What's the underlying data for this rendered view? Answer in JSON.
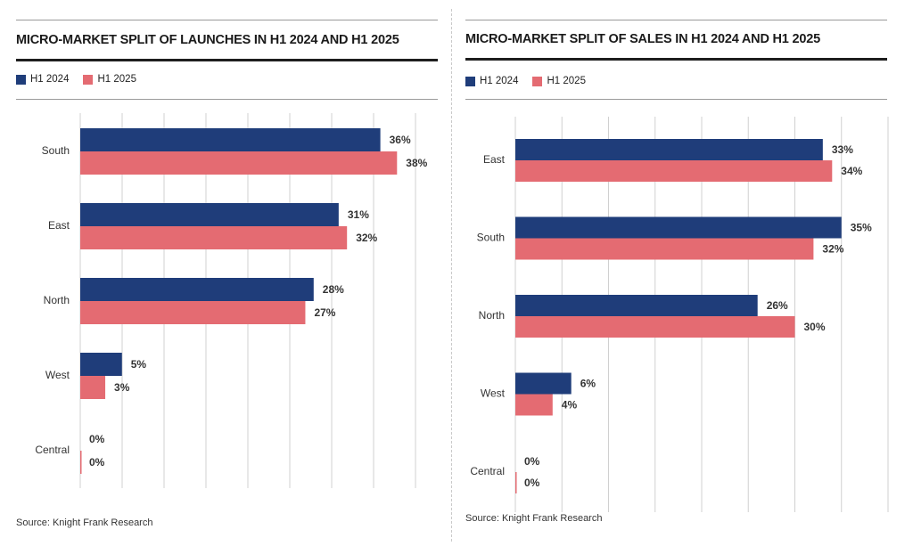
{
  "colors": {
    "h1_2024": "#1f3d7a",
    "h1_2025": "#e46b72",
    "grid": "#d0d0d0"
  },
  "chart_data": [
    {
      "type": "bar",
      "orientation": "horizontal",
      "title": "MICRO-MARKET SPLIT OF LAUNCHES IN H1 2024 AND H1 2025",
      "categories": [
        "South",
        "East",
        "North",
        "West",
        "Central"
      ],
      "series": [
        {
          "name": "H1 2024",
          "values": [
            36,
            31,
            28,
            5,
            0
          ],
          "labels": [
            "36%",
            "31%",
            "28%",
            "5%",
            "0%"
          ]
        },
        {
          "name": "H1 2025",
          "values": [
            38,
            32,
            27,
            3,
            0
          ],
          "labels": [
            "38%",
            "32%",
            "27%",
            "3%",
            "0%"
          ]
        }
      ],
      "xlim": [
        0,
        40
      ],
      "grid": true,
      "legend": "top-left",
      "source": "Source: Knight Frank Research"
    },
    {
      "type": "bar",
      "orientation": "horizontal",
      "title": "MICRO-MARKET SPLIT OF SALES IN H1 2024 AND H1 2025",
      "categories": [
        "East",
        "South",
        "North",
        "West",
        "Central"
      ],
      "series": [
        {
          "name": "H1 2024",
          "values": [
            33,
            35,
            26,
            6,
            0
          ],
          "labels": [
            "33%",
            "35%",
            "26%",
            "6%",
            "0%"
          ]
        },
        {
          "name": "H1 2025",
          "values": [
            34,
            32,
            30,
            4,
            0
          ],
          "labels": [
            "34%",
            "32%",
            "30%",
            "4%",
            "0%"
          ]
        }
      ],
      "xlim": [
        0,
        40
      ],
      "grid": true,
      "legend": "top-left",
      "source": "Source: Knight Frank Research"
    }
  ]
}
